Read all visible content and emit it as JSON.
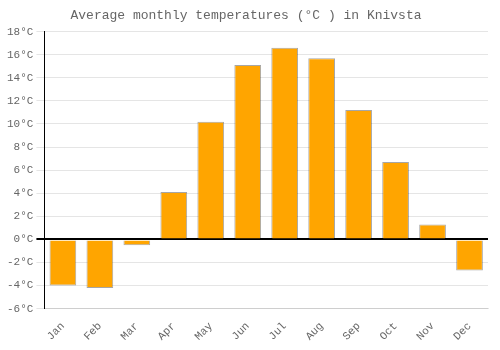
{
  "chart_data": {
    "type": "bar",
    "title": "Average monthly temperatures (°C ) in Knivsta",
    "categories": [
      "Jan",
      "Feb",
      "Mar",
      "Apr",
      "May",
      "Jun",
      "Jul",
      "Aug",
      "Sep",
      "Oct",
      "Nov",
      "Dec"
    ],
    "values": [
      -4.0,
      -4.2,
      -0.5,
      4.1,
      10.2,
      15.1,
      16.6,
      15.7,
      11.2,
      6.7,
      1.3,
      -2.7
    ],
    "color": "#FFA500",
    "ylim": [
      -6,
      18
    ],
    "yticks": [
      {
        "value": -6,
        "label": "-6°C"
      },
      {
        "value": -4,
        "label": "-4°C"
      },
      {
        "value": -2,
        "label": "-2°C"
      },
      {
        "value": 0,
        "label": "0°C"
      },
      {
        "value": 2,
        "label": "2°C"
      },
      {
        "value": 4,
        "label": "4°C"
      },
      {
        "value": 6,
        "label": "6°C"
      },
      {
        "value": 8,
        "label": "8°C"
      },
      {
        "value": 10,
        "label": "10°C"
      },
      {
        "value": 12,
        "label": "12°C"
      },
      {
        "value": 14,
        "label": "14°C"
      },
      {
        "value": 16,
        "label": "16°C"
      },
      {
        "value": 18,
        "label": "18°C"
      }
    ],
    "grid": true
  }
}
